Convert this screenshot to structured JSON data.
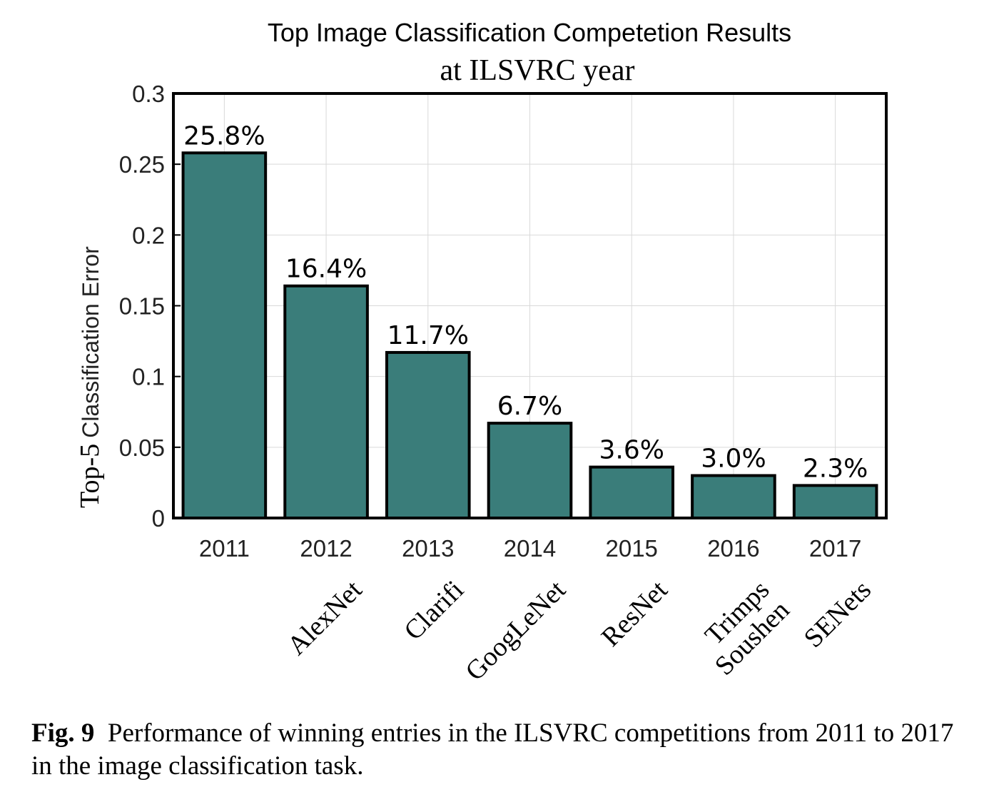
{
  "chart_data": {
    "type": "bar",
    "title": "Top Image Classification Competetion Results",
    "subtitle": "at ILSVRC year",
    "ylabel_prefix": "Top-5",
    "ylabel_rest": "Classification Error",
    "ylim": [
      0,
      0.3
    ],
    "yticks": [
      "0",
      "0.05",
      "0.1",
      "0.15",
      "0.2",
      "0.25",
      "0.3"
    ],
    "ytick_values": [
      0,
      0.05,
      0.1,
      0.15,
      0.2,
      0.25,
      0.3
    ],
    "categories": [
      "2011",
      "2012",
      "2013",
      "2014",
      "2015",
      "2016",
      "2017"
    ],
    "values": [
      0.258,
      0.164,
      0.117,
      0.067,
      0.036,
      0.03,
      0.023
    ],
    "data_labels": [
      "25.8%",
      "16.4%",
      "11.7%",
      "6.7%",
      "3.6%",
      "3.0%",
      "2.3%"
    ],
    "winners": [
      "",
      "AlexNet",
      "Clarifi",
      "GoogLeNet",
      "ResNet",
      "Trimps Soushen",
      "SENets"
    ],
    "bar_color": "#3a7d7a",
    "grid": true
  },
  "caption": {
    "label": "Fig. 9",
    "text": "Performance of winning entries in the ILSVRC competitions from 2011 to 2017 in the image classification task."
  }
}
